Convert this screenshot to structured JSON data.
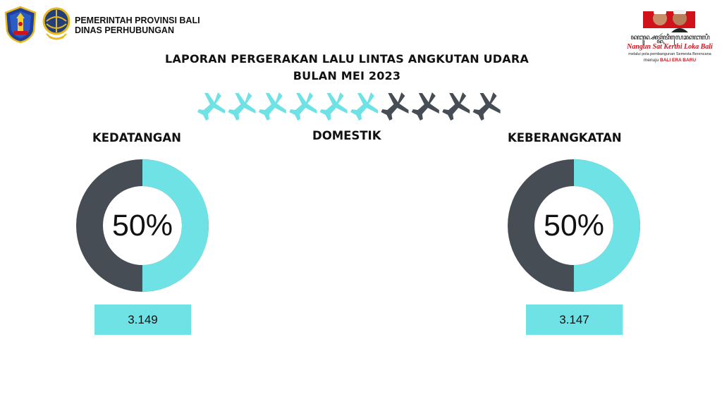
{
  "header": {
    "org_line1": "PEMERINTAH PROVINSI BALI",
    "org_line2": "DINAS PERHUBUNGAN"
  },
  "promo": {
    "script_text": "ꦤꦔꦸꦤ꧀ꦱꦠ꧀ꦏꦂꦠꦶꦭꦺꦴꦏꦧꦭꦶ",
    "slogan": "Nangun Sat Kerthi Loka Bali",
    "subtitle": "melalui pola pembangunan Semesta Berencana",
    "era_prefix": "menuju",
    "era_name": "BALI ERA BARU"
  },
  "title": {
    "line1": "LAPORAN PERGERAKAN LALU LINTAS ANGKUTAN UDARA",
    "line2": "BULAN MEI 2023"
  },
  "colors": {
    "accent": "#6fe2e6",
    "dark": "#474d54",
    "slogan_red": "#d0121b"
  },
  "chart_data": {
    "type": "pie",
    "segment_label": "DOMESTIK",
    "icon_row": {
      "icon": "airplane-icon",
      "total": 10,
      "highlighted": 6
    },
    "donuts": [
      {
        "label": "KEDATANGAN",
        "percent_label": "50%",
        "percent": 50,
        "count": "3.149"
      },
      {
        "label": "KEBERANGKATAN",
        "percent_label": "50%",
        "percent": 50,
        "count": "3.147"
      }
    ]
  }
}
